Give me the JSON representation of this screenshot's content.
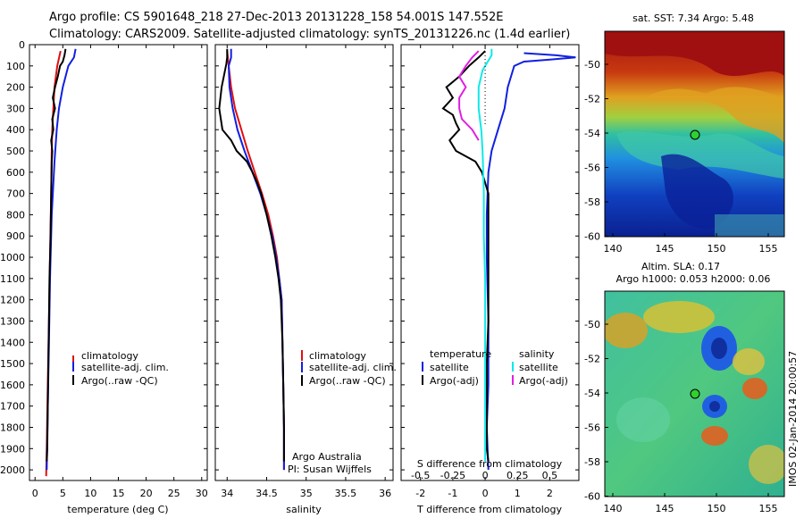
{
  "header": {
    "line1": "Argo profile: CS 5901648_218 27-Dec-2013 20131228_158 54.001S 147.552E",
    "line2": "Climatology: CARS2009. Satellite-adjusted climatology: synTS_20131226.nc (1.4d earlier)"
  },
  "colors": {
    "climatology": "#e01010",
    "satellite": "#1020e0",
    "argo": "#000000",
    "sal_satellite": "#10e8e8",
    "sal_argo": "#e020e0"
  },
  "depth_axis": {
    "ylim": [
      0,
      2050
    ],
    "ticks": [
      0,
      100,
      200,
      300,
      400,
      500,
      600,
      700,
      800,
      900,
      1000,
      1100,
      1200,
      1300,
      1400,
      1500,
      1600,
      1700,
      1800,
      1900,
      2000
    ]
  },
  "panels": {
    "temperature": {
      "xlabel": "temperature (deg C)",
      "xlim": [
        -1,
        31
      ],
      "xticks": [
        "0",
        "5",
        "10",
        "15",
        "20",
        "25",
        "30"
      ],
      "legend": [
        "climatology",
        "satellite-adj. clim.",
        "Argo(..raw -QC)"
      ]
    },
    "salinity": {
      "xlabel": "salinity",
      "xlim": [
        33.85,
        36.1
      ],
      "xticks": [
        "34",
        "34.5",
        "35",
        "35.5",
        "36"
      ],
      "legend": [
        "climatology",
        "satellite-adj. clim.",
        "Argo(..raw -QC)"
      ],
      "credit_line1": "Argo Australia",
      "credit_line2": "PI: Susan Wijffels"
    },
    "difference": {
      "xlabel": "T difference from climatology",
      "xlabel2": "S difference from climatology",
      "xlim": [
        -2.6,
        2.9
      ],
      "xticks": [
        "-2",
        "-1",
        "0",
        "1",
        "2"
      ],
      "sticks": [
        "-0.5",
        "-0.25",
        "0",
        "0.25",
        "0.5"
      ],
      "legend_temp_title": "temperature",
      "legend_sal_title": "salinity",
      "legend_temp": [
        "satellite",
        "Argo(-adj)"
      ],
      "legend_sal": [
        "satellite",
        "Argo(-adj)"
      ]
    }
  },
  "maps": {
    "sst_title": "sat. SST: 7.34  Argo: 5.48",
    "sla_title1": "Altim. SLA: 0.17",
    "sla_title2": "Argo h1000: 0.053 h2000: 0.06",
    "lat_ticks": [
      "-50",
      "-52",
      "-54",
      "-56",
      "-58",
      "-60"
    ],
    "lon_ticks": [
      "140",
      "145",
      "150",
      "155"
    ],
    "watermark": "IMOS 02-Jan-2014 20:00:57"
  },
  "chart_data": [
    {
      "type": "line",
      "title": "temperature",
      "xlabel": "temperature (deg C)",
      "ylabel": "",
      "xlim": [
        -1,
        31
      ],
      "ylim": [
        2050,
        0
      ],
      "series": [
        {
          "name": "climatology",
          "points": [
            [
              4.6,
              30
            ],
            [
              4.0,
              100
            ],
            [
              3.5,
              200
            ],
            [
              3.3,
              300
            ],
            [
              3.1,
              400
            ],
            [
              3.0,
              500
            ],
            [
              2.9,
              700
            ],
            [
              2.7,
              1000
            ],
            [
              2.5,
              1300
            ],
            [
              2.3,
              1600
            ],
            [
              2.1,
              1900
            ],
            [
              2.0,
              2030
            ]
          ]
        },
        {
          "name": "satellite-adj. clim.",
          "points": [
            [
              7.3,
              20
            ],
            [
              7.0,
              60
            ],
            [
              6.0,
              100
            ],
            [
              5.0,
              200
            ],
            [
              4.3,
              300
            ],
            [
              3.9,
              400
            ],
            [
              3.5,
              550
            ],
            [
              3.0,
              800
            ],
            [
              2.7,
              1100
            ],
            [
              2.5,
              1400
            ],
            [
              2.3,
              1700
            ],
            [
              2.1,
              2000
            ]
          ]
        },
        {
          "name": "Argo(..raw -QC)",
          "points": [
            [
              5.5,
              20
            ],
            [
              5.3,
              50
            ],
            [
              5.0,
              80
            ],
            [
              4.5,
              100
            ],
            [
              4.1,
              150
            ],
            [
              3.6,
              200
            ],
            [
              3.2,
              250
            ],
            [
              3.6,
              300
            ],
            [
              3.1,
              350
            ],
            [
              3.3,
              400
            ],
            [
              2.9,
              450
            ],
            [
              3.1,
              500
            ],
            [
              3.0,
              550
            ],
            [
              2.9,
              700
            ],
            [
              2.8,
              900
            ],
            [
              2.6,
              1100
            ],
            [
              2.5,
              1300
            ],
            [
              2.4,
              1500
            ],
            [
              2.3,
              1700
            ],
            [
              2.2,
              1900
            ],
            [
              2.1,
              1960
            ]
          ]
        }
      ]
    },
    {
      "type": "line",
      "title": "salinity",
      "xlabel": "salinity",
      "ylabel": "",
      "xlim": [
        33.85,
        36.1
      ],
      "ylim": [
        2050,
        0
      ],
      "series": [
        {
          "name": "climatology",
          "points": [
            [
              34.0,
              30
            ],
            [
              34.02,
              100
            ],
            [
              34.05,
              200
            ],
            [
              34.1,
              300
            ],
            [
              34.18,
              400
            ],
            [
              34.26,
              500
            ],
            [
              34.35,
              600
            ],
            [
              34.44,
              700
            ],
            [
              34.52,
              800
            ],
            [
              34.58,
              900
            ],
            [
              34.63,
              1000
            ],
            [
              34.66,
              1100
            ],
            [
              34.69,
              1200
            ],
            [
              34.7,
              1400
            ],
            [
              34.71,
              1600
            ],
            [
              34.72,
              1800
            ],
            [
              34.72,
              2000
            ]
          ]
        },
        {
          "name": "satellite-adj. clim.",
          "points": [
            [
              34.05,
              20
            ],
            [
              34.05,
              60
            ],
            [
              34.02,
              100
            ],
            [
              34.03,
              200
            ],
            [
              34.07,
              300
            ],
            [
              34.13,
              400
            ],
            [
              34.22,
              500
            ],
            [
              34.32,
              600
            ],
            [
              34.42,
              700
            ],
            [
              34.5,
              800
            ],
            [
              34.57,
              900
            ],
            [
              34.62,
              1000
            ],
            [
              34.66,
              1100
            ],
            [
              34.69,
              1200
            ],
            [
              34.7,
              1400
            ],
            [
              34.71,
              1600
            ],
            [
              34.72,
              1800
            ],
            [
              34.72,
              2000
            ]
          ]
        },
        {
          "name": "Argo(..raw -QC)",
          "points": [
            [
              34.0,
              20
            ],
            [
              34.0,
              60
            ],
            [
              33.99,
              90
            ],
            [
              33.93,
              200
            ],
            [
              33.9,
              300
            ],
            [
              33.94,
              400
            ],
            [
              34.05,
              450
            ],
            [
              34.12,
              500
            ],
            [
              34.25,
              550
            ],
            [
              34.32,
              600
            ],
            [
              34.38,
              650
            ],
            [
              34.43,
              700
            ],
            [
              34.5,
              800
            ],
            [
              34.56,
              900
            ],
            [
              34.61,
              1000
            ],
            [
              34.65,
              1100
            ],
            [
              34.68,
              1200
            ],
            [
              34.7,
              1400
            ],
            [
              34.71,
              1600
            ],
            [
              34.72,
              1800
            ],
            [
              34.72,
              1960
            ]
          ]
        }
      ]
    },
    {
      "type": "line",
      "title": "difference from climatology",
      "xlabel": "T difference from climatology",
      "x2label": "S difference from climatology",
      "ylabel": "",
      "xlim": [
        -2.6,
        2.9
      ],
      "x2lim": [
        -0.65,
        0.725
      ],
      "ylim": [
        2050,
        0
      ],
      "series": [
        {
          "name": "temperature satellite",
          "points": [
            [
              1.2,
              40
            ],
            [
              2.2,
              50
            ],
            [
              2.8,
              60
            ],
            [
              2.0,
              70
            ],
            [
              1.2,
              80
            ],
            [
              0.9,
              100
            ],
            [
              0.7,
              200
            ],
            [
              0.6,
              300
            ],
            [
              0.4,
              400
            ],
            [
              0.2,
              500
            ],
            [
              0.1,
              600
            ],
            [
              0.05,
              800
            ],
            [
              0.05,
              1000
            ],
            [
              0.1,
              1300
            ],
            [
              0.1,
              1600
            ],
            [
              0.05,
              1800
            ],
            [
              0.1,
              2000
            ]
          ]
        },
        {
          "name": "temperature Argo(-adj)",
          "points": [
            [
              0.0,
              30
            ],
            [
              -0.2,
              60
            ],
            [
              -0.5,
              100
            ],
            [
              -0.8,
              150
            ],
            [
              -1.2,
              200
            ],
            [
              -1.0,
              250
            ],
            [
              -1.3,
              300
            ],
            [
              -1.0,
              330
            ],
            [
              -0.9,
              370
            ],
            [
              -0.8,
              400
            ],
            [
              -1.1,
              450
            ],
            [
              -0.9,
              500
            ],
            [
              -0.3,
              550
            ],
            [
              -0.1,
              600
            ],
            [
              0.1,
              700
            ],
            [
              0.1,
              900
            ],
            [
              0.1,
              1100
            ],
            [
              0.1,
              1300
            ],
            [
              0.05,
              1500
            ],
            [
              0.05,
              1700
            ],
            [
              0.05,
              1900
            ],
            [
              0.1,
              1960
            ]
          ]
        },
        {
          "name": "salinity satellite",
          "points": [
            [
              0.05,
              20
            ],
            [
              0.05,
              50
            ],
            [
              0.02,
              80
            ],
            [
              -0.02,
              120
            ],
            [
              -0.05,
              200
            ],
            [
              -0.05,
              300
            ],
            [
              -0.03,
              400
            ],
            [
              -0.02,
              500
            ],
            [
              -0.01,
              700
            ],
            [
              -0.01,
              900
            ],
            [
              0.0,
              1100
            ],
            [
              0.0,
              1300
            ],
            [
              0.0,
              1500
            ],
            [
              0.0,
              1800
            ],
            [
              0.0,
              1960
            ]
          ]
        },
        {
          "name": "salinity Argo(-adj)",
          "points": [
            [
              -0.05,
              30
            ],
            [
              -0.1,
              60
            ],
            [
              -0.15,
              100
            ],
            [
              -0.2,
              150
            ],
            [
              -0.15,
              200
            ],
            [
              -0.2,
              250
            ],
            [
              -0.2,
              300
            ],
            [
              -0.18,
              350
            ],
            [
              -0.1,
              400
            ],
            [
              -0.05,
              450
            ]
          ]
        }
      ]
    }
  ]
}
